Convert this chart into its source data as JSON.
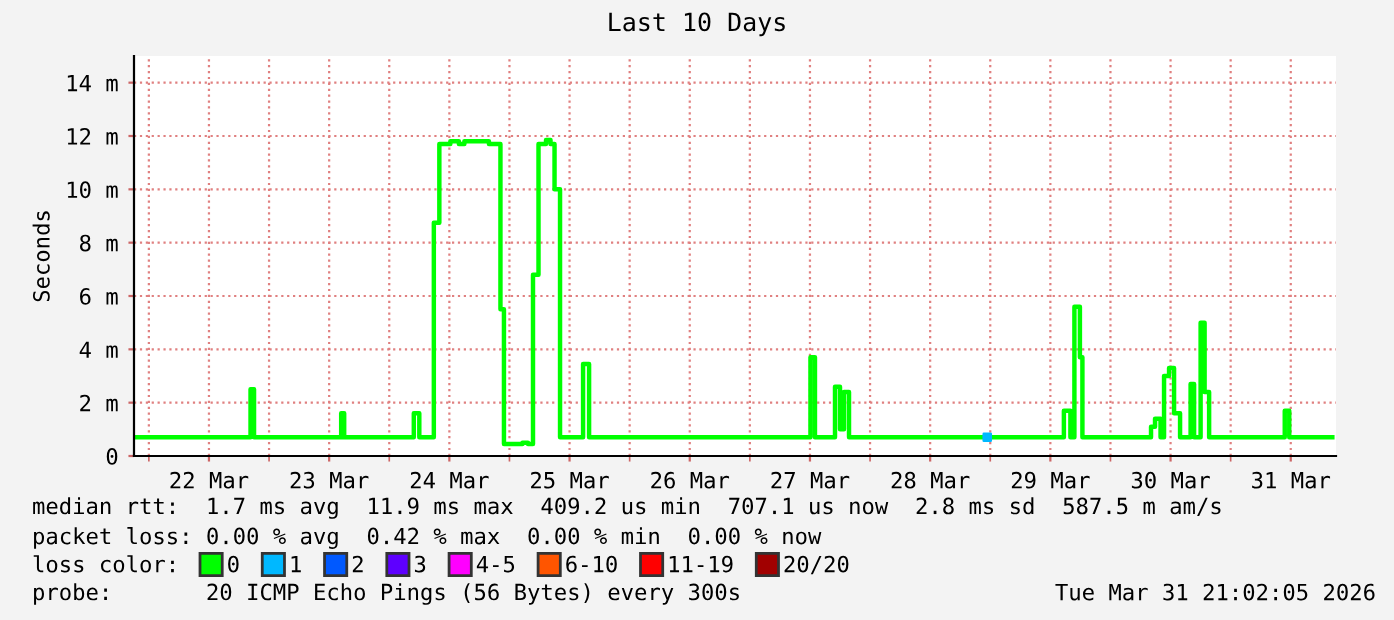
{
  "chart_data": {
    "type": "step",
    "title": "Last 10 Days",
    "ylabel": "Seconds",
    "x": [
      "2026-03-21T21:30",
      "2026-03-22T20:18",
      "2026-03-22T21:00",
      "2026-03-23T14:24",
      "2026-03-23T15:00",
      "2026-03-24T04:54",
      "2026-03-24T06:00",
      "2026-03-24T08:54",
      "2026-03-24T10:00",
      "2026-03-24T12:12",
      "2026-03-24T13:54",
      "2026-03-24T15:00",
      "2026-03-24T19:54",
      "2026-03-24T22:12",
      "2026-03-24T22:54",
      "2026-03-25T02:36",
      "2026-03-25T03:42",
      "2026-03-25T04:42",
      "2026-03-25T05:48",
      "2026-03-25T07:18",
      "2026-03-25T08:12",
      "2026-03-25T09:00",
      "2026-03-25T10:06",
      "2026-03-25T14:42",
      "2026-03-25T15:54",
      "2026-03-27T12:06",
      "2026-03-27T13:00",
      "2026-03-27T17:00",
      "2026-03-27T18:00",
      "2026-03-27T18:48",
      "2026-03-27T19:48",
      "2026-03-29T14:42",
      "2026-03-29T16:00",
      "2026-03-29T16:48",
      "2026-03-29T17:54",
      "2026-03-29T18:24",
      "2026-03-30T08:06",
      "2026-03-30T08:54",
      "2026-03-30T10:00",
      "2026-03-30T10:42",
      "2026-03-30T11:42",
      "2026-03-30T12:42",
      "2026-03-30T13:54",
      "2026-03-30T16:00",
      "2026-03-30T16:42",
      "2026-03-30T18:00",
      "2026-03-30T18:48",
      "2026-03-30T19:42",
      "2026-03-31T10:48",
      "2026-03-31T11:42",
      "2026-03-31T20:18"
    ],
    "series": [
      {
        "name": "0",
        "color": "#00ff00",
        "values": [
          0.7,
          2.5,
          0.7,
          1.6,
          0.7,
          1.6,
          0.7,
          8.75,
          11.7,
          11.8,
          11.7,
          11.8,
          11.7,
          5.5,
          0.45,
          0.5,
          0.45,
          6.8,
          11.7,
          11.85,
          11.7,
          10.0,
          0.7,
          3.45,
          0.7,
          3.7,
          0.7,
          2.6,
          1.0,
          2.4,
          0.7,
          1.7,
          0.7,
          5.6,
          3.7,
          0.7,
          1.1,
          1.4,
          0.7,
          3.0,
          3.3,
          1.6,
          0.7,
          2.7,
          0.7,
          5.0,
          2.4,
          0.7,
          1.7,
          0.7,
          0.7
        ]
      },
      {
        "name": "1",
        "color": "#00b8ff",
        "type": "scatter",
        "marker": "square",
        "x": [
          "2026-03-28T23:24"
        ],
        "values": [
          0.7
        ]
      },
      {
        "name": "2",
        "color": "#0059ff",
        "values": [
          null,
          null,
          null,
          null,
          null,
          null,
          null,
          null,
          null,
          null,
          null,
          null,
          null,
          null,
          null,
          null,
          null,
          null,
          null,
          null,
          null,
          null,
          null,
          null,
          null,
          null,
          null,
          null,
          null,
          null,
          null,
          null,
          null,
          null,
          null,
          null,
          null,
          null,
          null,
          null,
          null,
          null,
          null,
          null,
          null,
          null,
          null,
          null,
          null,
          null,
          null
        ]
      },
      {
        "name": "3",
        "color": "#5e00ff",
        "values": [
          null,
          null,
          null,
          null,
          null,
          null,
          null,
          null,
          null,
          null,
          null,
          null,
          null,
          null,
          null,
          null,
          null,
          null,
          null,
          null,
          null,
          null,
          null,
          null,
          null,
          null,
          null,
          null,
          null,
          null,
          null,
          null,
          null,
          null,
          null,
          null,
          null,
          null,
          null,
          null,
          null,
          null,
          null,
          null,
          null,
          null,
          null,
          null,
          null,
          null,
          null
        ]
      },
      {
        "name": "4-5",
        "color": "#ff00ff",
        "values": [
          null,
          null,
          null,
          null,
          null,
          null,
          null,
          null,
          null,
          null,
          null,
          null,
          null,
          null,
          null,
          null,
          null,
          null,
          null,
          null,
          null,
          null,
          null,
          null,
          null,
          null,
          null,
          null,
          null,
          null,
          null,
          null,
          null,
          null,
          null,
          null,
          null,
          null,
          null,
          null,
          null,
          null,
          null,
          null,
          null,
          null,
          null,
          null,
          null,
          null,
          null
        ]
      },
      {
        "name": "6-10",
        "color": "#ff5500",
        "values": [
          null,
          null,
          null,
          null,
          null,
          null,
          null,
          null,
          null,
          null,
          null,
          null,
          null,
          null,
          null,
          null,
          null,
          null,
          null,
          null,
          null,
          null,
          null,
          null,
          null,
          null,
          null,
          null,
          null,
          null,
          null,
          null,
          null,
          null,
          null,
          null,
          null,
          null,
          null,
          null,
          null,
          null,
          null,
          null,
          null,
          null,
          null,
          null,
          null,
          null,
          null
        ]
      },
      {
        "name": "11-19",
        "color": "#ff0000",
        "values": [
          null,
          null,
          null,
          null,
          null,
          null,
          null,
          null,
          null,
          null,
          null,
          null,
          null,
          null,
          null,
          null,
          null,
          null,
          null,
          null,
          null,
          null,
          null,
          null,
          null,
          null,
          null,
          null,
          null,
          null,
          null,
          null,
          null,
          null,
          null,
          null,
          null,
          null,
          null,
          null,
          null,
          null,
          null,
          null,
          null,
          null,
          null,
          null,
          null,
          null,
          null
        ]
      },
      {
        "name": "20/20",
        "color": "#a10000",
        "values": [
          null,
          null,
          null,
          null,
          null,
          null,
          null,
          null,
          null,
          null,
          null,
          null,
          null,
          null,
          null,
          null,
          null,
          null,
          null,
          null,
          null,
          null,
          null,
          null,
          null,
          null,
          null,
          null,
          null,
          null,
          null,
          null,
          null,
          null,
          null,
          null,
          null,
          null,
          null,
          null,
          null,
          null,
          null,
          null,
          null,
          null,
          null,
          null,
          null,
          null,
          null
        ]
      }
    ],
    "legend_title": "loss color:",
    "legend": "bottom",
    "grid": true,
    "marker": "none",
    "line_style": "solid",
    "xlim": [
      "2026-03-21T21:02",
      "2026-03-31T21:02"
    ],
    "xticks": [
      {
        "value": "2026-03-22T00:00",
        "label": null
      },
      {
        "value": "2026-03-22T12:00",
        "label": "22 Mar"
      },
      {
        "value": "2026-03-23T00:00",
        "label": null
      },
      {
        "value": "2026-03-23T12:00",
        "label": "23 Mar"
      },
      {
        "value": "2026-03-24T00:00",
        "label": null
      },
      {
        "value": "2026-03-24T12:00",
        "label": "24 Mar"
      },
      {
        "value": "2026-03-25T00:00",
        "label": null
      },
      {
        "value": "2026-03-25T12:00",
        "label": "25 Mar"
      },
      {
        "value": "2026-03-26T00:00",
        "label": null
      },
      {
        "value": "2026-03-26T12:00",
        "label": "26 Mar"
      },
      {
        "value": "2026-03-27T00:00",
        "label": null
      },
      {
        "value": "2026-03-27T12:00",
        "label": "27 Mar"
      },
      {
        "value": "2026-03-28T00:00",
        "label": null
      },
      {
        "value": "2026-03-28T12:00",
        "label": "28 Mar"
      },
      {
        "value": "2026-03-29T00:00",
        "label": null
      },
      {
        "value": "2026-03-29T12:00",
        "label": "29 Mar"
      },
      {
        "value": "2026-03-30T00:00",
        "label": null
      },
      {
        "value": "2026-03-30T12:00",
        "label": "30 Mar"
      },
      {
        "value": "2026-03-31T00:00",
        "label": null
      },
      {
        "value": "2026-03-31T12:00",
        "label": "31 Mar"
      }
    ],
    "ylim": [
      0,
      15
    ],
    "yticks": [
      0,
      {
        "value": 2,
        "label": "2 m"
      },
      {
        "value": 4,
        "label": "4 m"
      },
      {
        "value": 6,
        "label": "6 m"
      },
      {
        "value": 8,
        "label": "8 m"
      },
      {
        "value": 10,
        "label": "10 m"
      },
      {
        "value": 12,
        "label": "12 m"
      },
      {
        "value": 14,
        "label": "14 m"
      }
    ],
    "annotations": [
      "median rtt:  1.7 ms avg  11.9 ms max  409.2 us min  707.1 us now  2.8 ms sd  587.5 m am/s",
      "packet loss: 0.00 % avg  0.42 % max  0.00 % min  0.00 % now",
      "probe:       20 ICMP Echo Pings (56 Bytes) every 300s",
      "Tue Mar 31 21:02:05 2026"
    ]
  }
}
